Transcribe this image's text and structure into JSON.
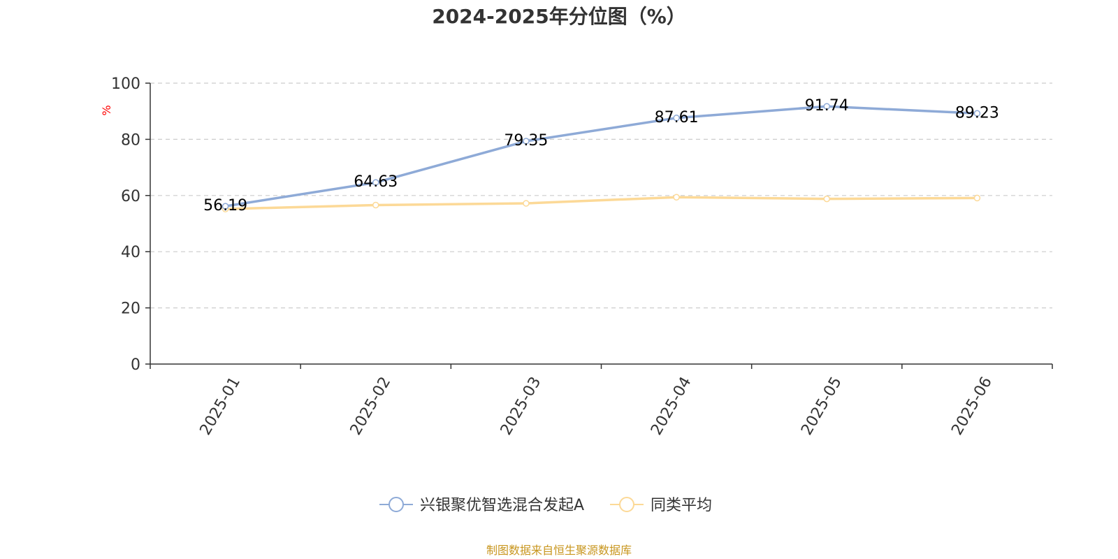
{
  "chart_data": {
    "type": "line",
    "title": "2024-2025年分位图（%）",
    "ylabel": "%",
    "categories": [
      "2025-01",
      "2025-02",
      "2025-03",
      "2025-04",
      "2025-05",
      "2025-06"
    ],
    "ylim": [
      0,
      100
    ],
    "yticks": [
      0,
      20,
      40,
      60,
      80,
      100
    ],
    "grid": true,
    "legend_position": "bottom",
    "series": [
      {
        "name": "兴银聚优智选混合发起A",
        "values": [
          56.19,
          64.63,
          79.35,
          87.61,
          91.74,
          89.23
        ],
        "color": "#8eaad7",
        "show_labels": true
      },
      {
        "name": "同类平均",
        "values": [
          55.2,
          56.6,
          57.2,
          59.4,
          58.8,
          59.1
        ],
        "color": "#fcd997",
        "show_labels": false
      }
    ]
  },
  "source_text": "制图数据来自恒生聚源数据库",
  "colors": {
    "axis": "#333333",
    "grid": "#cccccc",
    "unit": "#ff0000",
    "source": "#c8961e"
  }
}
